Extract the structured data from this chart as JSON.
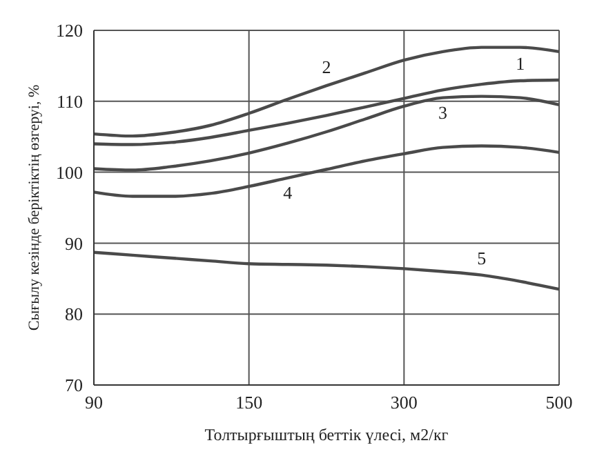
{
  "chart_data": {
    "type": "line",
    "xlabel": "Толтырғыштың беттік үлесі, м2/кг",
    "ylabel": "Сығылу кезінде беріктіктің өзгеруі, %",
    "categories": [
      "90",
      null,
      null,
      null,
      "150",
      null,
      null,
      null,
      "300",
      null,
      null,
      null,
      "500"
    ],
    "ylim": [
      70,
      120
    ],
    "yticks": [
      70,
      80,
      90,
      100,
      110,
      120
    ],
    "grid": true,
    "legend": false,
    "marker": "none",
    "line_style": "solid",
    "series": [
      {
        "name": "1",
        "color": "#4a4a4a",
        "values": [
          104,
          103.9,
          104.2,
          104.9,
          105.9,
          106.9,
          108,
          109.2,
          110.4,
          111.6,
          112.4,
          112.9,
          113
        ]
      },
      {
        "name": "2",
        "color": "#4a4a4a",
        "values": [
          105.4,
          105.1,
          105.6,
          106.6,
          108.3,
          110.3,
          112.2,
          114,
          115.8,
          117,
          117.6,
          117.6,
          117
        ]
      },
      {
        "name": "3",
        "color": "#4a4a4a",
        "values": [
          100.5,
          100.3,
          100.8,
          101.6,
          102.7,
          104.1,
          105.7,
          107.5,
          109.3,
          110.5,
          110.7,
          110.5,
          109.5
        ]
      },
      {
        "name": "4",
        "color": "#4a4a4a",
        "values": [
          97.2,
          96.6,
          96.6,
          97,
          98,
          99.2,
          100.4,
          101.6,
          102.6,
          103.5,
          103.7,
          103.5,
          102.8
        ]
      },
      {
        "name": "5",
        "color": "#4a4a4a",
        "values": [
          88.7,
          88.3,
          87.9,
          87.5,
          87.1,
          87,
          86.9,
          86.7,
          86.4,
          86,
          85.5,
          84.6,
          83.5
        ]
      }
    ]
  }
}
